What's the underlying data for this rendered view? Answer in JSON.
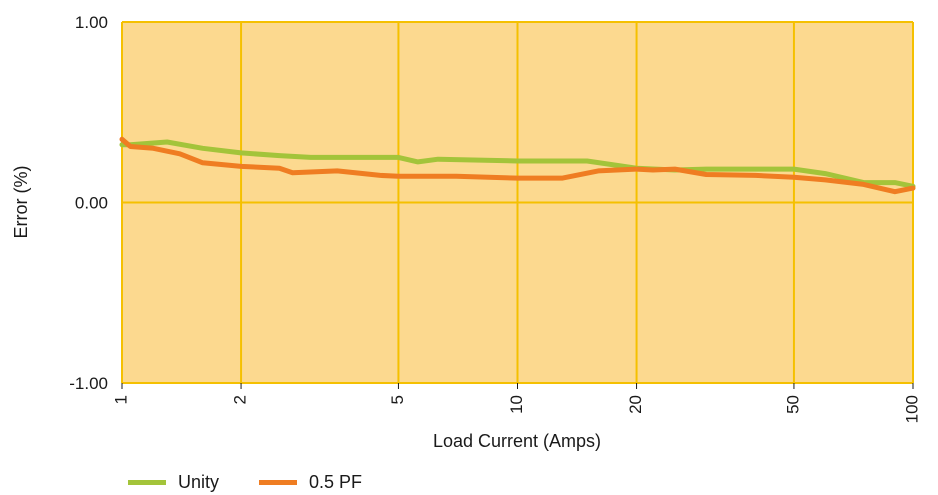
{
  "chart_data": {
    "type": "line",
    "xlabel": "Load Current (Amps)",
    "ylabel": "Error (%)",
    "x_scale": "log",
    "xlim": [
      1,
      100
    ],
    "ylim": [
      -1.0,
      1.0
    ],
    "x_ticks": [
      1,
      2,
      5,
      10,
      20,
      50,
      100
    ],
    "x_tick_labels": [
      "1",
      "2",
      "5",
      "10",
      "20",
      "50",
      "100"
    ],
    "y_ticks": [
      -1.0,
      0.0,
      1.0
    ],
    "y_tick_labels": [
      "-1.00",
      "0.00",
      "1.00"
    ],
    "grid": true,
    "legend_position": "bottom-left",
    "plot_background": "#fcd98f",
    "grid_color": "#f5c000",
    "series": [
      {
        "name": "Unity",
        "color": "#a3c43a",
        "x": [
          1,
          1.05,
          1.3,
          1.6,
          2.0,
          2.5,
          3.0,
          4.0,
          5.0,
          5.6,
          6.3,
          8.0,
          10,
          12,
          15,
          20,
          25,
          30,
          40,
          50,
          60,
          75,
          90,
          100
        ],
        "y": [
          0.32,
          0.32,
          0.335,
          0.3,
          0.275,
          0.26,
          0.25,
          0.25,
          0.25,
          0.225,
          0.24,
          0.235,
          0.23,
          0.23,
          0.23,
          0.19,
          0.18,
          0.185,
          0.185,
          0.185,
          0.16,
          0.11,
          0.11,
          0.09
        ]
      },
      {
        "name": "0.5 PF",
        "color": "#ef7d22",
        "x": [
          1,
          1.05,
          1.2,
          1.4,
          1.6,
          2.0,
          2.5,
          2.7,
          3.5,
          4.5,
          5.0,
          7.0,
          10,
          13,
          16,
          20,
          22,
          25,
          30,
          40,
          50,
          60,
          75,
          90,
          100
        ],
        "y": [
          0.35,
          0.31,
          0.3,
          0.27,
          0.22,
          0.2,
          0.19,
          0.165,
          0.175,
          0.15,
          0.145,
          0.145,
          0.135,
          0.135,
          0.175,
          0.185,
          0.18,
          0.185,
          0.155,
          0.15,
          0.14,
          0.125,
          0.1,
          0.06,
          0.08
        ]
      }
    ]
  }
}
